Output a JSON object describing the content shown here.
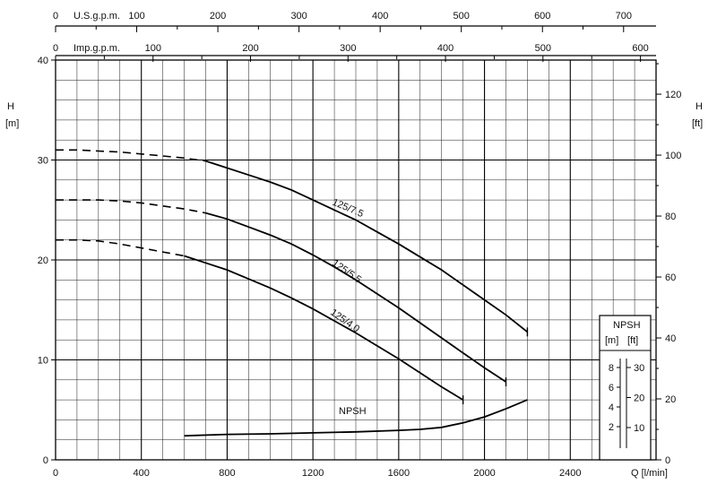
{
  "chart_data": {
    "type": "line",
    "x_axis": {
      "label": "Q [l/min]",
      "range": [
        0,
        2800
      ],
      "ticks": [
        0,
        400,
        800,
        1200,
        1600,
        2000,
        2400
      ],
      "tick_labels": [
        "0",
        "400",
        "800",
        "1200",
        "1600",
        "2000",
        "2400"
      ]
    },
    "top_axis_usgpm": {
      "label": "U.S.g.p.m.",
      "range": [
        0,
        740
      ],
      "ticks": [
        0,
        100,
        200,
        300,
        400,
        500,
        600,
        700
      ],
      "tick_labels": [
        "0",
        "100",
        "200",
        "300",
        "400",
        "500",
        "600",
        "700"
      ]
    },
    "top_axis_impgpm": {
      "label": "Imp.g.p.m.",
      "range": [
        0,
        616
      ],
      "ticks": [
        0,
        100,
        200,
        300,
        400,
        500,
        600
      ],
      "tick_labels": [
        "0",
        "100",
        "200",
        "300",
        "400",
        "500",
        "600"
      ]
    },
    "left_axis": {
      "label_top": "H",
      "label_unit": "[m]",
      "range": [
        0,
        40
      ],
      "ticks": [
        0,
        10,
        20,
        30,
        40
      ],
      "tick_labels": [
        "0",
        "10",
        "20",
        "30",
        "40"
      ]
    },
    "right_axis": {
      "label_top": "H",
      "label_unit": "[ft]",
      "range": [
        0,
        131.2
      ],
      "ticks": [
        0,
        20,
        40,
        60,
        80,
        100,
        120
      ],
      "tick_labels": [
        "0",
        "20",
        "40",
        "60",
        "80",
        "100",
        "120"
      ]
    },
    "grid": true,
    "series": [
      {
        "name": "125/7.5",
        "color": "#000000",
        "dashed_until_x": 700,
        "x": [
          0,
          100,
          200,
          300,
          400,
          500,
          600,
          700,
          800,
          900,
          1000,
          1100,
          1200,
          1300,
          1400,
          1500,
          1600,
          1700,
          1800,
          1900,
          2000,
          2100,
          2200
        ],
        "y": [
          31.0,
          31.0,
          30.9,
          30.8,
          30.6,
          30.4,
          30.2,
          29.9,
          29.2,
          28.5,
          27.8,
          27.0,
          26.0,
          25.0,
          24.0,
          22.8,
          21.6,
          20.3,
          19.0,
          17.5,
          16.0,
          14.5,
          12.8
        ]
      },
      {
        "name": "125/5.5",
        "color": "#000000",
        "dashed_until_x": 700,
        "x": [
          0,
          100,
          200,
          300,
          400,
          500,
          600,
          700,
          800,
          900,
          1000,
          1100,
          1200,
          1300,
          1400,
          1500,
          1600,
          1700,
          1800,
          1900,
          2000,
          2100
        ],
        "y": [
          26.0,
          26.0,
          26.0,
          25.9,
          25.7,
          25.4,
          25.1,
          24.7,
          24.1,
          23.3,
          22.5,
          21.6,
          20.5,
          19.3,
          18.0,
          16.6,
          15.2,
          13.7,
          12.2,
          10.7,
          9.2,
          7.8
        ]
      },
      {
        "name": "125/4.0",
        "color": "#000000",
        "dashed_until_x": 600,
        "x": [
          0,
          100,
          200,
          300,
          400,
          500,
          600,
          700,
          800,
          900,
          1000,
          1100,
          1200,
          1300,
          1400,
          1500,
          1600,
          1700,
          1800,
          1900
        ],
        "y": [
          22.0,
          22.0,
          21.9,
          21.6,
          21.2,
          20.8,
          20.4,
          19.7,
          19.0,
          18.1,
          17.2,
          16.2,
          15.1,
          13.9,
          12.7,
          11.4,
          10.1,
          8.7,
          7.3,
          6.0
        ]
      },
      {
        "name": "NPSH",
        "color": "#000000",
        "dashed_until_x": 0,
        "x": [
          600,
          800,
          1000,
          1200,
          1400,
          1600,
          1700,
          1800,
          1900,
          2000,
          2100,
          2200
        ],
        "y": [
          2.4,
          2.55,
          2.6,
          2.7,
          2.8,
          2.95,
          3.05,
          3.25,
          3.7,
          4.3,
          5.1,
          6.0
        ]
      }
    ],
    "curve_labels": [
      "125/7.5",
      "125/5.5",
      "125/4.0",
      "NPSH"
    ],
    "npsh_inset": {
      "title": "NPSH",
      "unit_m": "[m]",
      "unit_ft": "[ft]",
      "m_ticks": [
        "8",
        "6",
        "4",
        "2"
      ],
      "ft_ticks": [
        "30",
        "20",
        "10"
      ]
    }
  }
}
